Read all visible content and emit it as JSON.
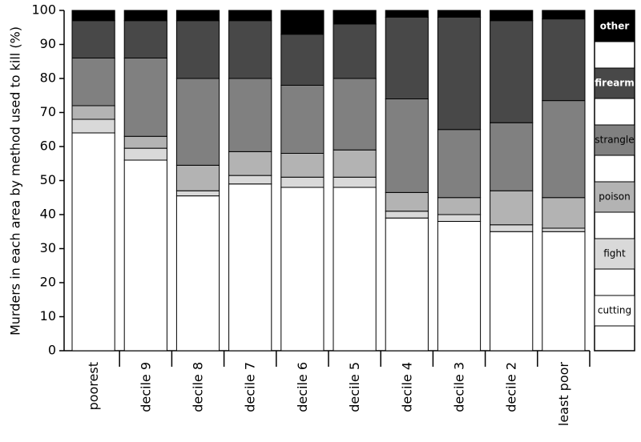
{
  "chart_data": {
    "type": "stacked_bar",
    "y_label": "Murders in each area by method used to kill (%)",
    "categories": [
      "poorest",
      "decile 9",
      "decile 8",
      "decile 7",
      "decile 6",
      "decile 5",
      "decile 4",
      "decile 3",
      "decile 2",
      "least poor"
    ],
    "series": [
      {
        "name": "cutting",
        "color": "#ffffff",
        "values": [
          64,
          56,
          45.5,
          49,
          48,
          48,
          39,
          38,
          35,
          35
        ]
      },
      {
        "name": "fight",
        "color": "#d9d9d9",
        "values": [
          4,
          3.5,
          1.5,
          2.5,
          3,
          3,
          2,
          2,
          2,
          1
        ]
      },
      {
        "name": "poison",
        "color": "#b3b3b3",
        "values": [
          4,
          3.5,
          7.5,
          7,
          7,
          8,
          5.5,
          5,
          10,
          9
        ]
      },
      {
        "name": "strangle",
        "color": "#808080",
        "values": [
          14,
          23,
          25.5,
          21.5,
          20,
          21,
          27.5,
          20,
          20,
          28.5
        ]
      },
      {
        "name": "firearm",
        "color": "#484848",
        "values": [
          11,
          11,
          17,
          17,
          15,
          16,
          24,
          33,
          30,
          24
        ]
      },
      {
        "name": "other",
        "color": "#000000",
        "values": [
          3,
          3,
          3,
          3,
          7,
          4,
          2,
          2,
          3,
          2.5
        ]
      }
    ],
    "ylim": [
      0,
      100
    ],
    "yticks": [
      0,
      10,
      20,
      30,
      40,
      50,
      60,
      70,
      80,
      90,
      100
    ]
  }
}
